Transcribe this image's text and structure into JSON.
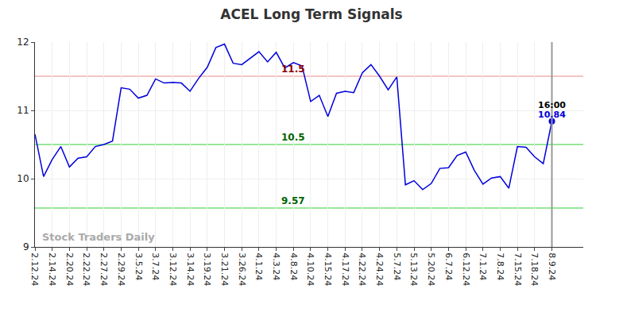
{
  "chart_data": {
    "type": "line",
    "title": "ACEL Long Term Signals",
    "watermark": "Stock Traders Daily",
    "color": "#0000dd",
    "categories": [
      "2.12.24",
      null,
      "2.14.24",
      null,
      "2.20.24",
      null,
      "2.22.24",
      null,
      "2.27.24",
      null,
      "2.29.24",
      null,
      "3.5.24",
      null,
      "3.7.24",
      null,
      "3.12.24",
      null,
      "3.14.24",
      null,
      "3.19.24",
      null,
      "3.21.24",
      null,
      "3.26.24",
      null,
      "4.1.24",
      null,
      "4.3.24",
      null,
      "4.8.24",
      null,
      "4.10.24",
      null,
      "4.15.24",
      null,
      "4.17.24",
      null,
      "4.22.24",
      null,
      "4.24.24",
      null,
      "5.7.24",
      null,
      "5.13.24",
      null,
      "5.20.24",
      null,
      "6.7.24",
      null,
      "6.12.24",
      null,
      "7.1.24",
      null,
      "7.8.24",
      null,
      "7.15.24",
      null,
      "7.18.24",
      null,
      "8.9.24"
    ],
    "values": [
      10.65,
      10.03,
      10.28,
      10.47,
      10.17,
      10.3,
      10.32,
      10.47,
      10.5,
      10.55,
      11.33,
      11.31,
      11.18,
      11.22,
      11.46,
      11.4,
      11.41,
      11.4,
      11.28,
      11.47,
      11.63,
      11.92,
      11.97,
      11.69,
      11.67,
      11.77,
      11.86,
      11.71,
      11.85,
      11.62,
      11.7,
      11.65,
      11.13,
      11.22,
      10.91,
      11.25,
      11.28,
      11.26,
      11.55,
      11.67,
      11.5,
      11.3,
      11.49,
      9.91,
      9.97,
      9.84,
      9.93,
      10.15,
      10.16,
      10.34,
      10.39,
      10.12,
      9.92,
      10.01,
      10.03,
      9.86,
      10.47,
      10.46,
      10.32,
      10.22,
      10.84
    ],
    "ylim": [
      9,
      12
    ],
    "yticks": [
      9,
      10,
      11,
      12
    ],
    "grid": true,
    "levels": [
      {
        "value": 11.5,
        "label": "11.5",
        "color": "#f5c4c4",
        "text_color": "#8b0000"
      },
      {
        "value": 10.5,
        "label": "10.5",
        "color": "#98e698",
        "text_color": "#006400"
      },
      {
        "value": 9.57,
        "label": "9.57",
        "color": "#98e698",
        "text_color": "#006400"
      }
    ],
    "last_point": {
      "time": "16:00",
      "value_label": "10.84"
    }
  }
}
